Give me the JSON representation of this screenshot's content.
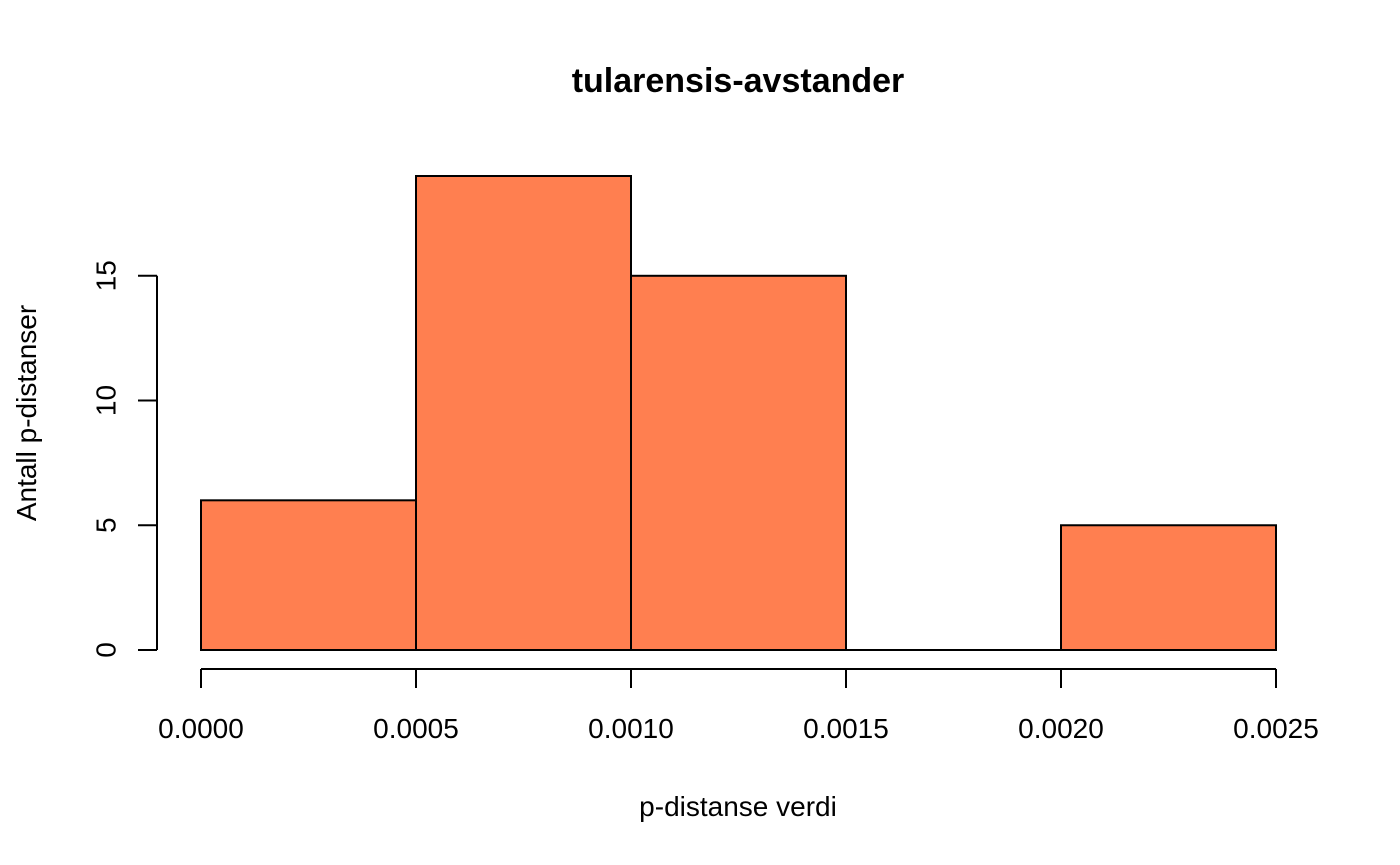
{
  "chart_data": {
    "type": "bar",
    "title": "tularensis-avstander",
    "xlabel": "p-distanse verdi",
    "ylabel": "Antall p-distanser",
    "bins": [
      {
        "start": 0.0,
        "end": 0.0005,
        "count": 6
      },
      {
        "start": 0.0005,
        "end": 0.001,
        "count": 19
      },
      {
        "start": 0.001,
        "end": 0.0015,
        "count": 15
      },
      {
        "start": 0.0015,
        "end": 0.002,
        "count": 0
      },
      {
        "start": 0.002,
        "end": 0.0025,
        "count": 5
      }
    ],
    "xlim": [
      0.0,
      0.0025
    ],
    "ylim": [
      0,
      19
    ],
    "x_ticks": [
      0.0,
      0.0005,
      0.001,
      0.0015,
      0.002,
      0.0025
    ],
    "x_tick_labels": [
      "0.0000",
      "0.0005",
      "0.0010",
      "0.0015",
      "0.0020",
      "0.0025"
    ],
    "y_ticks": [
      0,
      5,
      10,
      15
    ],
    "y_tick_labels": [
      "0",
      "5",
      "10",
      "15"
    ],
    "bar_color": "#FF7F50",
    "grid": false
  }
}
